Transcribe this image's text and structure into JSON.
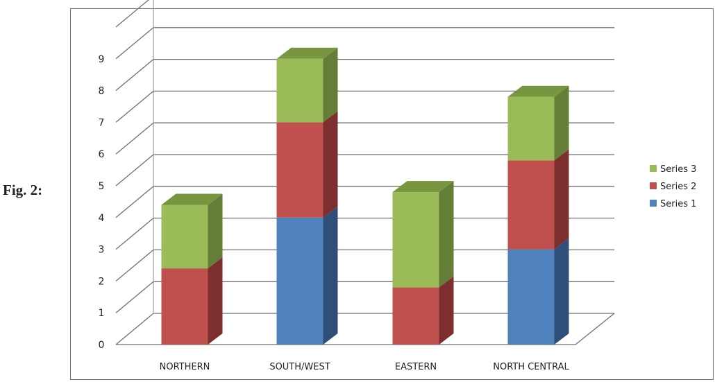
{
  "figure_label": "Fig. 2:",
  "chart_data": {
    "type": "bar",
    "stacked": true,
    "three_d": true,
    "categories": [
      "NORTHERN",
      "SOUTH/WEST",
      "EASTERN",
      "NORTH CENTRAL"
    ],
    "series": [
      {
        "name": "Series 1",
        "values": [
          0,
          4,
          0,
          3
        ],
        "color": "#4f81bd",
        "side": "#2e4f78",
        "top": "#3a6396"
      },
      {
        "name": "Series 2",
        "values": [
          2.4,
          3,
          1.8,
          2.8
        ],
        "color": "#c0504d",
        "side": "#7c2f2e",
        "top": "#963c3a"
      },
      {
        "name": "Series 3",
        "values": [
          2,
          2,
          3,
          2
        ],
        "color": "#9bbb59",
        "side": "#647d37",
        "top": "#78953f"
      }
    ],
    "y_ticks": [
      "0",
      "1",
      "2",
      "3",
      "4",
      "5",
      "6",
      "7",
      "8",
      "9"
    ],
    "ylim": [
      0,
      10
    ],
    "grid": true,
    "legend": "right"
  }
}
